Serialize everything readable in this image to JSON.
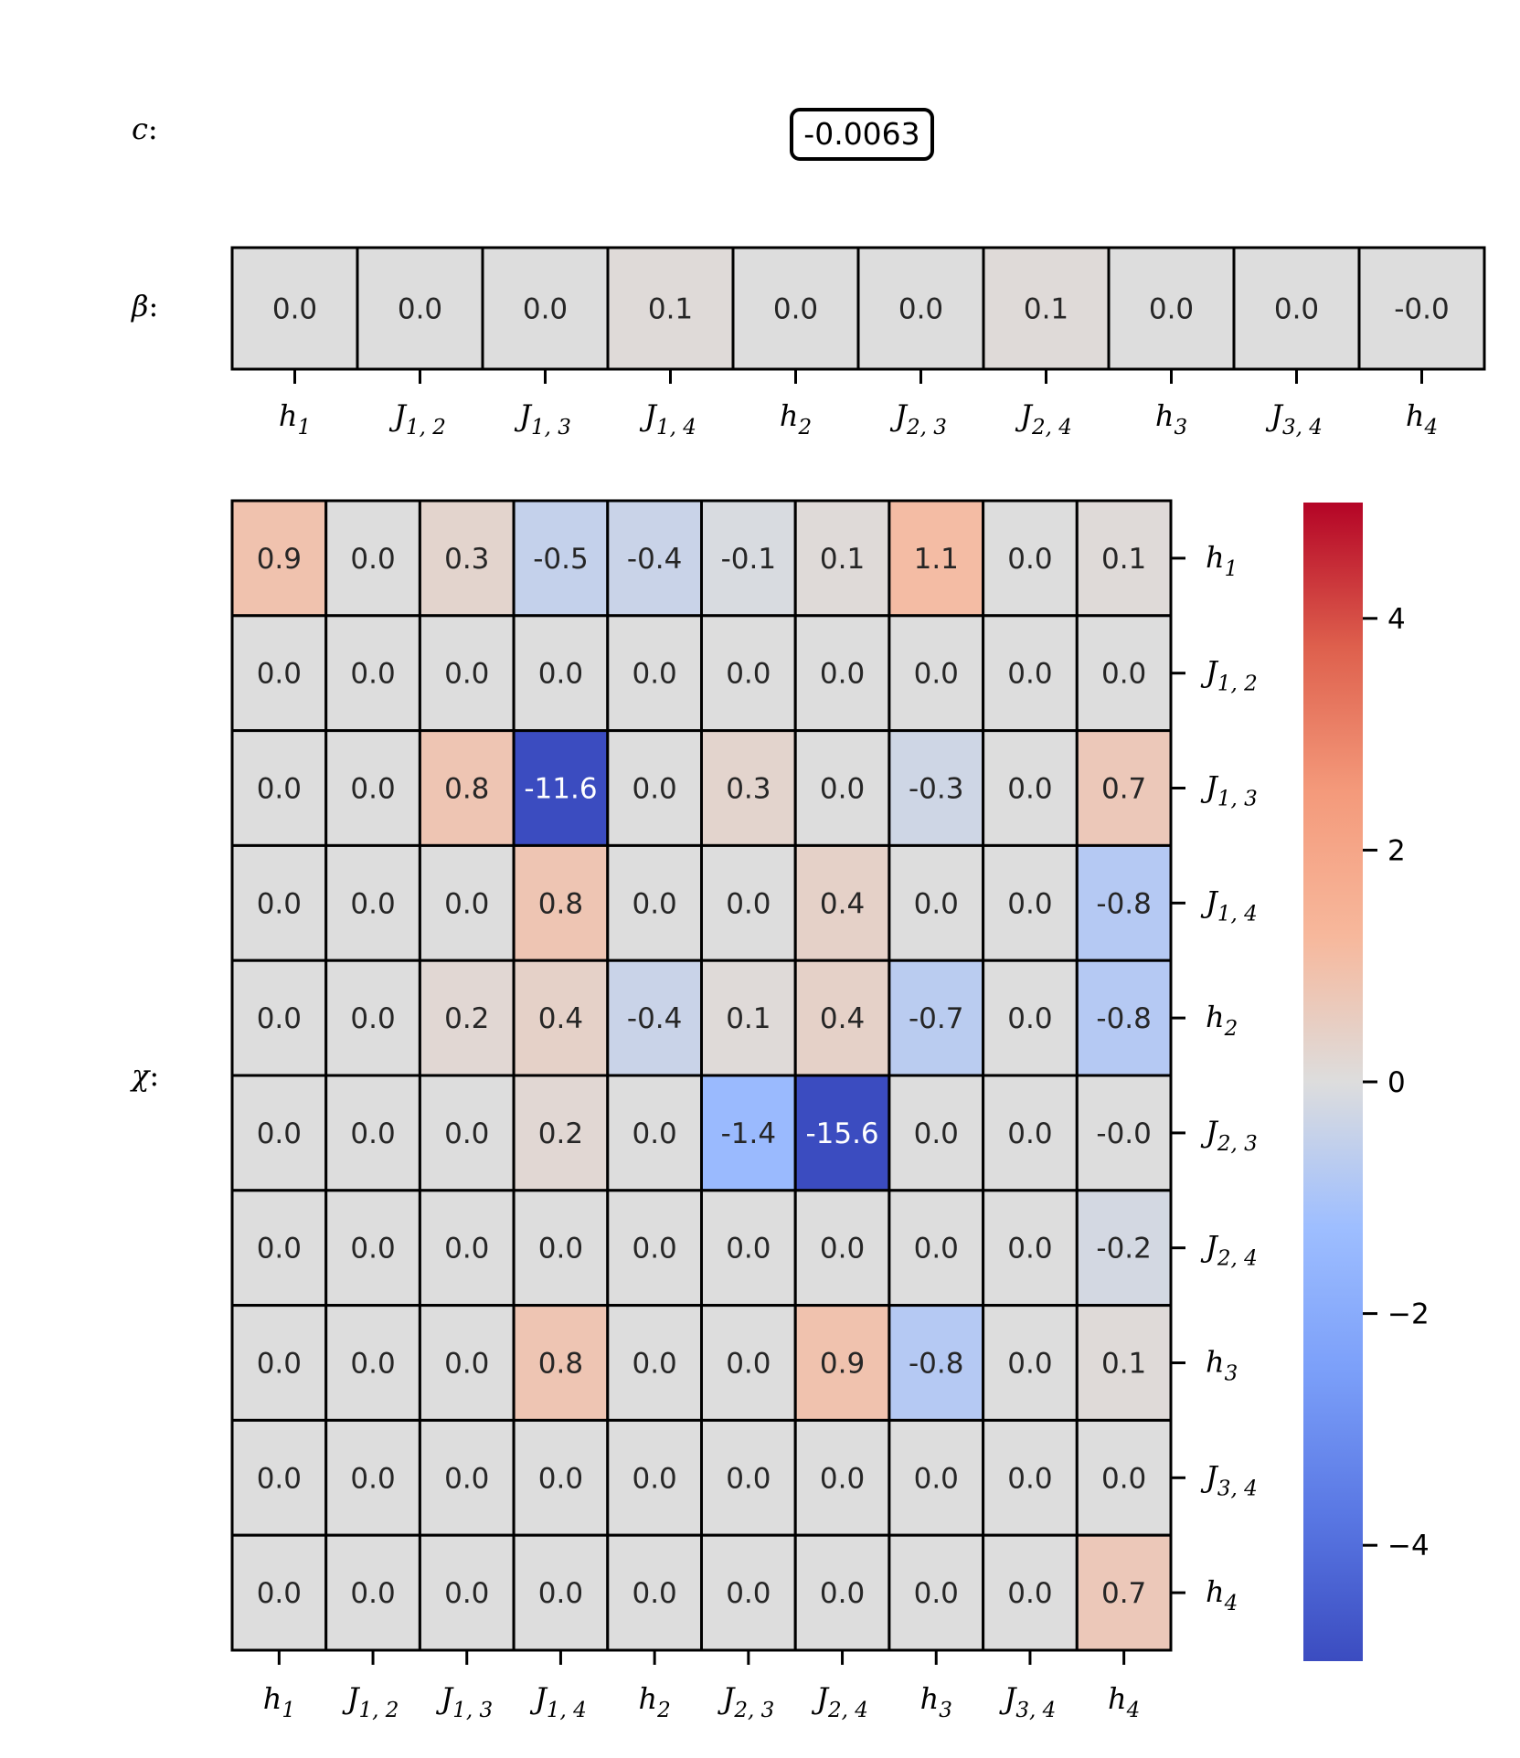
{
  "chart_data": [
    {
      "type": "table",
      "label": "c",
      "value": "-0.0063"
    },
    {
      "type": "heatmap",
      "label": "β",
      "x_labels": [
        {
          "base": "h",
          "sub": "1"
        },
        {
          "base": "J",
          "sub": "1, 2"
        },
        {
          "base": "J",
          "sub": "1, 3"
        },
        {
          "base": "J",
          "sub": "1, 4"
        },
        {
          "base": "h",
          "sub": "2"
        },
        {
          "base": "J",
          "sub": "2, 3"
        },
        {
          "base": "J",
          "sub": "2, 4"
        },
        {
          "base": "h",
          "sub": "3"
        },
        {
          "base": "J",
          "sub": "3, 4"
        },
        {
          "base": "h",
          "sub": "4"
        }
      ],
      "values": [
        [
          "0.0",
          "0.0",
          "0.0",
          "0.1",
          "0.0",
          "0.0",
          "0.1",
          "0.0",
          "0.0",
          "-0.0"
        ]
      ]
    },
    {
      "type": "heatmap",
      "label": "χ",
      "x_labels": [
        {
          "base": "h",
          "sub": "1"
        },
        {
          "base": "J",
          "sub": "1, 2"
        },
        {
          "base": "J",
          "sub": "1, 3"
        },
        {
          "base": "J",
          "sub": "1, 4"
        },
        {
          "base": "h",
          "sub": "2"
        },
        {
          "base": "J",
          "sub": "2, 3"
        },
        {
          "base": "J",
          "sub": "2, 4"
        },
        {
          "base": "h",
          "sub": "3"
        },
        {
          "base": "J",
          "sub": "3, 4"
        },
        {
          "base": "h",
          "sub": "4"
        }
      ],
      "y_labels": [
        {
          "base": "h",
          "sub": "1"
        },
        {
          "base": "J",
          "sub": "1, 2"
        },
        {
          "base": "J",
          "sub": "1, 3"
        },
        {
          "base": "J",
          "sub": "1, 4"
        },
        {
          "base": "h",
          "sub": "2"
        },
        {
          "base": "J",
          "sub": "2, 3"
        },
        {
          "base": "J",
          "sub": "2, 4"
        },
        {
          "base": "h",
          "sub": "3"
        },
        {
          "base": "J",
          "sub": "3, 4"
        },
        {
          "base": "h",
          "sub": "4"
        }
      ],
      "values": [
        [
          "0.9",
          "0.0",
          "0.3",
          "-0.5",
          "-0.4",
          "-0.1",
          "0.1",
          "1.1",
          "0.0",
          "0.1"
        ],
        [
          "0.0",
          "0.0",
          "0.0",
          "0.0",
          "0.0",
          "0.0",
          "0.0",
          "0.0",
          "0.0",
          "0.0"
        ],
        [
          "0.0",
          "0.0",
          "0.8",
          "-11.6",
          "0.0",
          "0.3",
          "0.0",
          "-0.3",
          "0.0",
          "0.7"
        ],
        [
          "0.0",
          "0.0",
          "0.0",
          "0.8",
          "0.0",
          "0.0",
          "0.4",
          "0.0",
          "0.0",
          "-0.8"
        ],
        [
          "0.0",
          "0.0",
          "0.2",
          "0.4",
          "-0.4",
          "0.1",
          "0.4",
          "-0.7",
          "0.0",
          "-0.8"
        ],
        [
          "0.0",
          "0.0",
          "0.0",
          "0.2",
          "0.0",
          "-1.4",
          "-15.6",
          "0.0",
          "0.0",
          "-0.0"
        ],
        [
          "0.0",
          "0.0",
          "0.0",
          "0.0",
          "0.0",
          "0.0",
          "0.0",
          "0.0",
          "0.0",
          "-0.2"
        ],
        [
          "0.0",
          "0.0",
          "0.0",
          "0.8",
          "0.0",
          "0.0",
          "0.9",
          "-0.8",
          "0.0",
          "0.1"
        ],
        [
          "0.0",
          "0.0",
          "0.0",
          "0.0",
          "0.0",
          "0.0",
          "0.0",
          "0.0",
          "0.0",
          "0.0"
        ],
        [
          "0.0",
          "0.0",
          "0.0",
          "0.0",
          "0.0",
          "0.0",
          "0.0",
          "0.0",
          "0.0",
          "0.7"
        ]
      ],
      "colorbar": {
        "colormap": "coolwarm",
        "range": [
          -5,
          5
        ],
        "ticks": [
          4,
          2,
          0,
          -2,
          -4
        ],
        "tick_labels": [
          "4",
          "2",
          "0",
          "−2",
          "−4"
        ]
      }
    }
  ],
  "colors": {
    "cold": "#3b4cc0",
    "neutral": "#dddddd",
    "warm": "#b40426"
  }
}
